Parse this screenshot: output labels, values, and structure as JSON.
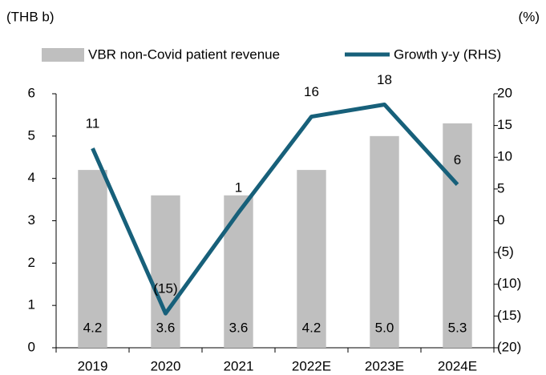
{
  "chart_data": {
    "type": "bar",
    "y_label": "(THB b)",
    "y2_label": "(%)",
    "categories": [
      "2019",
      "2020",
      "2021",
      "2022E",
      "2023E",
      "2024E"
    ],
    "series": [
      {
        "name": "VBR non-Covid patient revenue",
        "type": "bar",
        "color": "#bfbfbf",
        "values": [
          4.2,
          3.6,
          3.6,
          4.2,
          5.0,
          5.3
        ],
        "value_labels": [
          "4.2",
          "3.6",
          "3.6",
          "4.2",
          "5.0",
          "5.3"
        ]
      },
      {
        "name": "Growth y-y (RHS)",
        "type": "line",
        "axis": "y2",
        "color": "#17607a",
        "values": [
          11.4,
          -14.6,
          1.3,
          16.4,
          18.3,
          5.7
        ],
        "value_labels": [
          "11",
          "(15)",
          "1",
          "16",
          "18",
          "6"
        ]
      }
    ],
    "ylim": [
      0,
      6
    ],
    "yticks": [
      0,
      1,
      2,
      3,
      4,
      5,
      6
    ],
    "y2lim": [
      -20,
      20
    ],
    "y2ticks": [
      {
        "value": -20,
        "label": "(20)"
      },
      {
        "value": -15,
        "label": "(15)"
      },
      {
        "value": -10,
        "label": "(10)"
      },
      {
        "value": -5,
        "label": "(5)"
      },
      0,
      5,
      10,
      15,
      20
    ],
    "legend": "top"
  }
}
